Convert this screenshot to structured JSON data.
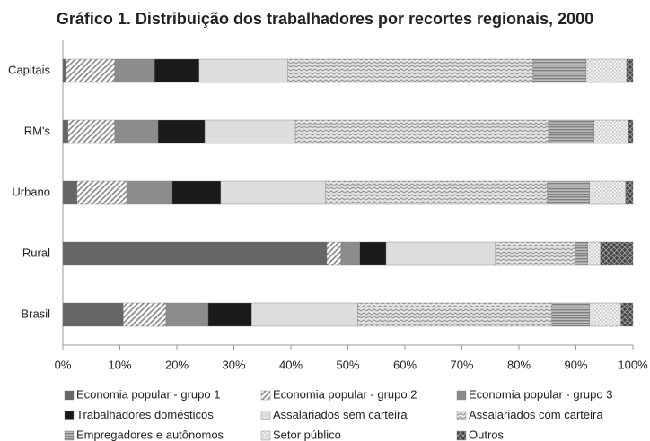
{
  "chart_data": {
    "type": "stacked_bar_horizontal",
    "title": "Gráfico 1. Distribuição dos trabalhadores por recortes regionais, 2000",
    "categories": [
      "Capitais",
      "RM's",
      "Urbano",
      "Rural",
      "Brasil"
    ],
    "xlim": [
      0,
      100
    ],
    "xticks": [
      {
        "value": 0,
        "label": "0%"
      },
      {
        "value": 10,
        "label": "10%"
      },
      {
        "value": 20,
        "label": "20%"
      },
      {
        "value": 30,
        "label": "30%"
      },
      {
        "value": 40,
        "label": "40%"
      },
      {
        "value": 50,
        "label": "50%"
      },
      {
        "value": 60,
        "label": "60%"
      },
      {
        "value": 70,
        "label": "70%"
      },
      {
        "value": 80,
        "label": "80%"
      },
      {
        "value": 90,
        "label": "90%"
      },
      {
        "value": 100,
        "label": "100%"
      }
    ],
    "series": [
      {
        "name": "Economia popular - grupo 1",
        "color": "#666666",
        "pattern": "solid",
        "values": [
          0.5,
          0.9,
          2.5,
          46.3,
          10.6
        ]
      },
      {
        "name": "Economia popular - grupo 2",
        "color": "#888888",
        "pattern": "hatch",
        "values": [
          8.6,
          8.2,
          8.7,
          2.5,
          7.5
        ]
      },
      {
        "name": "Economia popular - grupo 3",
        "color": "#8c8c8c",
        "pattern": "solid",
        "values": [
          7.0,
          7.6,
          8.0,
          3.3,
          7.4
        ]
      },
      {
        "name": "Trabalhadores domésticos",
        "color": "#1a1a1a",
        "pattern": "solid",
        "values": [
          7.8,
          8.2,
          8.5,
          4.6,
          7.6
        ]
      },
      {
        "name": "Assalariados sem carteira",
        "color": "#dddddd",
        "pattern": "solid",
        "values": [
          15.6,
          15.9,
          18.4,
          19.2,
          18.6
        ]
      },
      {
        "name": "Assalariados com carteira",
        "color": "#999999",
        "pattern": "zigzag",
        "values": [
          43.0,
          44.4,
          38.9,
          13.9,
          34.1
        ]
      },
      {
        "name": "Empregadores e autônomos",
        "color": "#808080",
        "pattern": "hlines",
        "values": [
          9.3,
          8.0,
          7.4,
          2.3,
          6.6
        ]
      },
      {
        "name": "Setor público",
        "color": "#aaaaaa",
        "pattern": "dots",
        "values": [
          7.1,
          5.9,
          6.3,
          2.2,
          5.5
        ]
      },
      {
        "name": "Outros",
        "color": "#444444",
        "pattern": "cross",
        "values": [
          1.1,
          0.9,
          1.3,
          5.7,
          2.1
        ]
      }
    ]
  }
}
